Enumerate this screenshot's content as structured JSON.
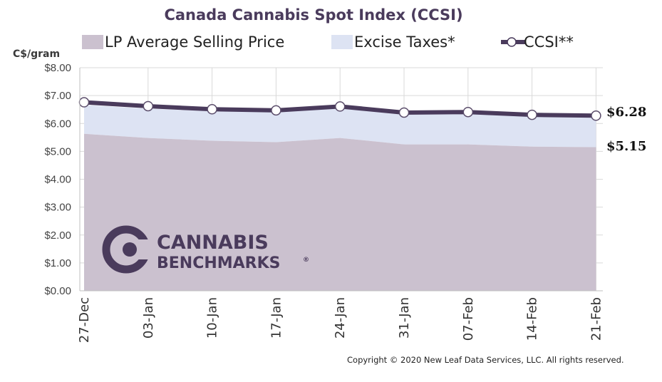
{
  "chart_data": {
    "type": "area",
    "title": "Canada Cannabis Spot Index (CCSI)",
    "ylabel": "C$/gram",
    "xlabel": "",
    "ylim": [
      0,
      8
    ],
    "yticks": [
      "$0.00",
      "$1.00",
      "$2.00",
      "$3.00",
      "$4.00",
      "$5.00",
      "$6.00",
      "$7.00",
      "$8.00"
    ],
    "categories": [
      "27-Dec",
      "03-Jan",
      "10-Jan",
      "17-Jan",
      "24-Jan",
      "31-Jan",
      "07-Feb",
      "14-Feb",
      "21-Feb"
    ],
    "grid": true,
    "legend_position": "top",
    "series": [
      {
        "name": "LP Average Selling Price",
        "kind": "area",
        "color": "#cbc1cf",
        "values": [
          5.63,
          5.48,
          5.38,
          5.33,
          5.48,
          5.25,
          5.25,
          5.17,
          5.15
        ]
      },
      {
        "name": "Excise Taxes*",
        "kind": "stacked-area",
        "color": "#dde3f3",
        "values": [
          1.03,
          1.05,
          1.06,
          1.08,
          1.06,
          1.07,
          1.09,
          1.09,
          1.08
        ]
      },
      {
        "name": "CCSI**",
        "kind": "line",
        "color": "#4a3b5c",
        "values": [
          6.76,
          6.62,
          6.51,
          6.47,
          6.61,
          6.39,
          6.41,
          6.31,
          6.28
        ]
      }
    ],
    "end_labels": [
      "$6.28",
      "$5.15"
    ]
  },
  "logo": {
    "line1": "CANNABIS",
    "line2": "BENCHMARKS",
    "mark": "®"
  },
  "copyright": "Copyright © 2020 New Leaf Data Services, LLC. All rights reserved.",
  "colors": {
    "accent": "#4a3b5c",
    "lp_area": "#cbc1cf",
    "tax_area": "#dde3f3",
    "grid": "#d9d9d9"
  }
}
